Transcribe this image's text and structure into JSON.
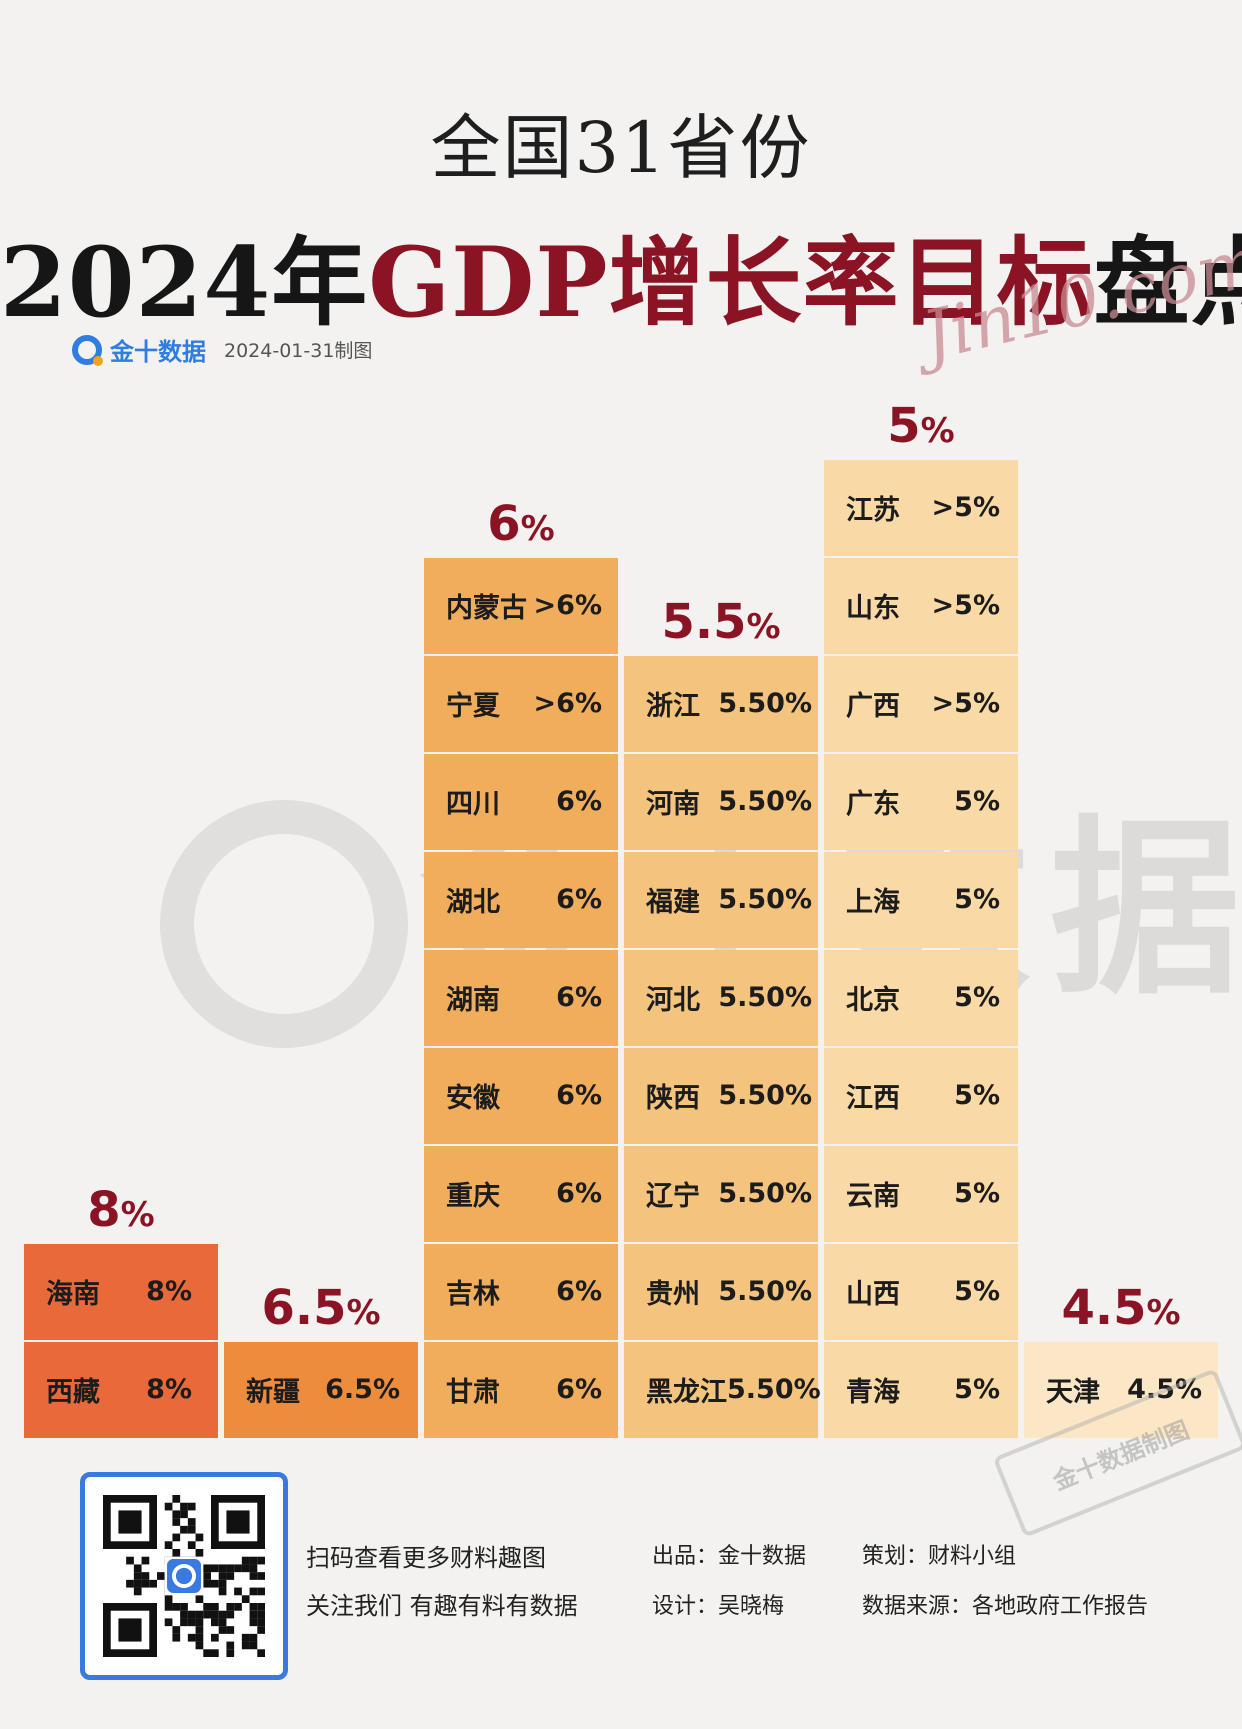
{
  "header": {
    "title_line1": "全国31省份",
    "title_line2_a": "2024年",
    "title_line2_b": "GDP增长率目标",
    "title_line2_c": "盘点",
    "script_mark": "Jin10.com",
    "brand_name": "金十数据",
    "date_note": "2024-01-31制图"
  },
  "watermark": {
    "text": "金十数据",
    "stamp_text": "金十数据制图"
  },
  "colors": {
    "8%": "#e86a3b",
    "6.5%": "#ee8c3d",
    "6%": "#f0ad5b",
    "5.5%": "#f4c47e",
    "5%": "#f9d9a5",
    "4.5%": "#fbe7c5",
    "accent_red": "#8a1324",
    "brand_blue": "#2f7de0"
  },
  "chart_data": {
    "type": "table",
    "groups": [
      {
        "label_num": "8",
        "label_pct": "%",
        "items": [
          {
            "name": "海南",
            "value": "8%"
          },
          {
            "name": "西藏",
            "value": "8%"
          }
        ]
      },
      {
        "label_num": "6.5",
        "label_pct": "%",
        "items": [
          {
            "name": "新疆",
            "value": "6.5%"
          }
        ]
      },
      {
        "label_num": "6",
        "label_pct": "%",
        "items": [
          {
            "name": "内蒙古",
            "value": ">6%"
          },
          {
            "name": "宁夏",
            "value": ">6%"
          },
          {
            "name": "四川",
            "value": "6%"
          },
          {
            "name": "湖北",
            "value": "6%"
          },
          {
            "name": "湖南",
            "value": "6%"
          },
          {
            "name": "安徽",
            "value": "6%"
          },
          {
            "name": "重庆",
            "value": "6%"
          },
          {
            "name": "吉林",
            "value": "6%"
          },
          {
            "name": "甘肃",
            "value": "6%"
          }
        ]
      },
      {
        "label_num": "5.5",
        "label_pct": "%",
        "items": [
          {
            "name": "浙江",
            "value": "5.50%"
          },
          {
            "name": "河南",
            "value": "5.50%"
          },
          {
            "name": "福建",
            "value": "5.50%"
          },
          {
            "name": "河北",
            "value": "5.50%"
          },
          {
            "name": "陕西",
            "value": "5.50%"
          },
          {
            "name": "辽宁",
            "value": "5.50%"
          },
          {
            "name": "贵州",
            "value": "5.50%"
          },
          {
            "name": "黑龙江",
            "value": "5.50%"
          }
        ]
      },
      {
        "label_num": "5",
        "label_pct": "%",
        "items": [
          {
            "name": "江苏",
            "value": ">5%"
          },
          {
            "name": "山东",
            "value": ">5%"
          },
          {
            "name": "广西",
            "value": ">5%"
          },
          {
            "name": "广东",
            "value": "5%"
          },
          {
            "name": "上海",
            "value": "5%"
          },
          {
            "name": "北京",
            "value": "5%"
          },
          {
            "name": "江西",
            "value": "5%"
          },
          {
            "name": "云南",
            "value": "5%"
          },
          {
            "name": "山西",
            "value": "5%"
          },
          {
            "name": "青海",
            "value": "5%"
          }
        ]
      },
      {
        "label_num": "4.5",
        "label_pct": "%",
        "items": [
          {
            "name": "天津",
            "value": "4.5%"
          }
        ]
      }
    ]
  },
  "footer": {
    "scan_line1": "扫码查看更多财料趣图",
    "scan_line2": "关注我们 有趣有料有数据",
    "producer": "出品：金十数据",
    "designer": "设计：吴晓梅",
    "planner": "策划：财料小组",
    "source": "数据来源：各地政府工作报告"
  }
}
